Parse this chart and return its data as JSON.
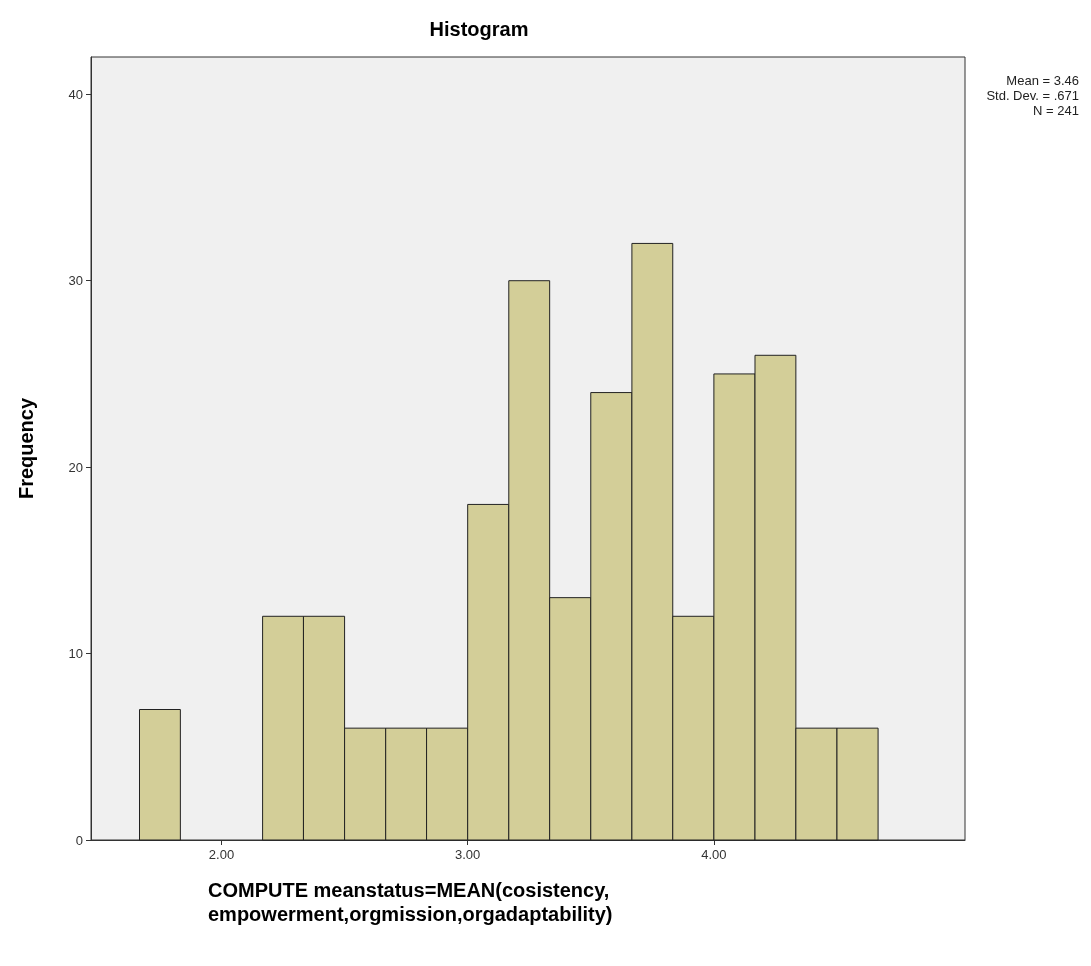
{
  "chart_data": {
    "type": "histogram",
    "title": "Histogram",
    "xlabel": "COMPUTE meanstatus=MEAN(cosistency, empowerment,orgmission,orgadaptability)",
    "ylabel": "Frequency",
    "bins": [
      1.667,
      1.833,
      2.0,
      2.167,
      2.333,
      2.5,
      2.667,
      2.833,
      3.0,
      3.167,
      3.333,
      3.5,
      3.667,
      3.833,
      4.0,
      4.167,
      4.333,
      4.5,
      4.667
    ],
    "values": [
      7,
      0,
      0,
      12,
      12,
      6,
      6,
      6,
      18,
      30,
      13,
      24,
      32,
      12,
      25,
      26,
      6,
      6
    ],
    "color": "#d3ce98",
    "xlim": [
      1.47,
      5.02
    ],
    "xticks": [
      {
        "value": 2,
        "label": "2.00"
      },
      {
        "value": 3,
        "label": "3.00"
      },
      {
        "value": 4,
        "label": "4.00"
      }
    ],
    "ylim": [
      0,
      42
    ],
    "yticks": [
      0,
      10,
      20,
      30,
      40
    ],
    "grid": false,
    "annotations": [
      "Mean = 3.46",
      "Std. Dev. = .671",
      "N = 241"
    ]
  }
}
